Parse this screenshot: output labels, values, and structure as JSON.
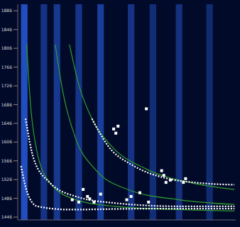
{
  "chart_data": {
    "type": "line",
    "xlim": [
      0,
      100
    ],
    "ylim": [
      1440,
      1900
    ],
    "xticks": [
      0,
      5,
      10,
      15,
      20,
      25,
      30,
      35,
      40,
      45,
      50,
      55,
      60,
      65,
      70,
      75,
      80,
      85,
      90,
      95,
      100
    ],
    "yticks": [
      1446,
      1486,
      1526,
      1566,
      1606,
      1646,
      1686,
      1726,
      1766,
      1806,
      1846,
      1886
    ],
    "tick_labels": "y",
    "grid": false,
    "streaks": {
      "color": "#2f6bff",
      "x": [
        3,
        12,
        18,
        28,
        38,
        52,
        62,
        74,
        88
      ],
      "intensity": [
        1.0,
        0.5,
        0.6,
        0.55,
        0.7,
        0.5,
        0.4,
        0.45,
        0.35
      ]
    },
    "series": [
      {
        "type": "line",
        "color": "#2e9e2e",
        "line_style": "solid",
        "x": [
          4.1,
          5.9,
          8.9,
          14.8,
          26.6,
          44.4,
          74,
          99.4
        ],
        "values": [
          1814,
          1684,
          1584,
          1519,
          1483,
          1469,
          1462,
          1459
        ]
      },
      {
        "type": "line",
        "color": "#2e9e2e",
        "line_style": "solid",
        "x": [
          17.2,
          20.7,
          26.6,
          35.5,
          50.3,
          74,
          99.4
        ],
        "values": [
          1814,
          1713,
          1613,
          1548,
          1505,
          1483,
          1473
        ]
      },
      {
        "type": "line",
        "color": "#2e9e2e",
        "line_style": "solid",
        "x": [
          23.7,
          28.1,
          34,
          42.9,
          59.2,
          79.9,
          99.4
        ],
        "values": [
          1814,
          1727,
          1656,
          1598,
          1548,
          1519,
          1505
        ]
      },
      {
        "type": "line",
        "color": "#ffffff",
        "line_style": "dotted",
        "x": [
          1.5,
          4.4,
          8.9,
          23.7,
          59.2,
          99.4
        ],
        "values": [
          1555,
          1498,
          1469,
          1462,
          1464,
          1464
        ]
      },
      {
        "type": "line",
        "color": "#ffffff",
        "line_style": "dotted",
        "x": [
          3.6,
          7.4,
          14.8,
          26.6,
          44.4,
          74,
          99.4
        ],
        "values": [
          1656,
          1569,
          1519,
          1490,
          1476,
          1469,
          1469
        ]
      },
      {
        "type": "line",
        "color": "#ffffff",
        "line_style": "dotted",
        "x": [
          34,
          41.4,
          53.3,
          68,
          82.8,
          99.4
        ],
        "values": [
          1656,
          1598,
          1555,
          1529,
          1519,
          1515
        ]
      },
      {
        "type": "scatter",
        "color": "#ffffff",
        "marker": "square",
        "x": [
          44,
          45,
          46,
          59,
          66,
          67,
          68,
          70,
          76,
          77,
          30,
          32,
          33,
          25,
          28,
          50,
          52,
          56,
          60,
          35,
          38
        ],
        "values": [
          1634,
          1625,
          1640,
          1677,
          1545,
          1535,
          1520,
          1525,
          1520,
          1528,
          1505,
          1490,
          1485,
          1483,
          1478,
          1483,
          1490,
          1498,
          1478,
          1478,
          1495
        ]
      }
    ]
  }
}
